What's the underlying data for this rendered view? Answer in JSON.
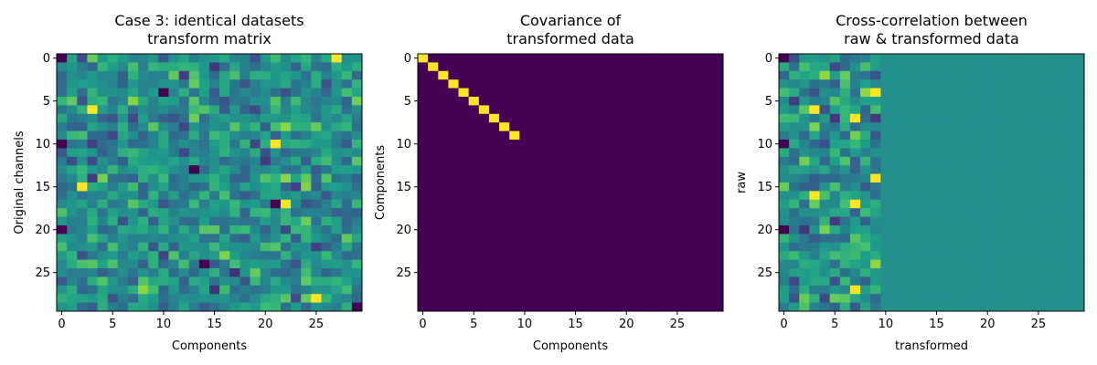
{
  "chart_data": [
    {
      "type": "heatmap",
      "title_lines": [
        "Case 3: identical datasets",
        "transform matrix"
      ],
      "xlabel": "Components",
      "ylabel": "Original channels",
      "shape": [
        30,
        30
      ],
      "xticks": [
        0,
        5,
        10,
        15,
        20,
        25
      ],
      "yticks": [
        0,
        5,
        10,
        15,
        20,
        25
      ],
      "colormap": "viridis",
      "pattern": "random",
      "value_range": [
        -1,
        1
      ],
      "seed": 7,
      "bright_cells": [
        [
          0,
          27
        ],
        [
          10,
          21
        ],
        [
          17,
          22
        ],
        [
          28,
          25
        ],
        [
          6,
          3
        ],
        [
          15,
          2
        ]
      ],
      "dark_cells": [
        [
          0,
          0
        ],
        [
          4,
          10
        ],
        [
          10,
          0
        ],
        [
          13,
          13
        ],
        [
          17,
          21
        ],
        [
          20,
          0
        ],
        [
          29,
          29
        ],
        [
          24,
          14
        ]
      ]
    },
    {
      "type": "heatmap",
      "title_lines": [
        "Covariance of",
        "transformed data"
      ],
      "xlabel": "Components",
      "ylabel": "Components",
      "shape": [
        30,
        30
      ],
      "xticks": [
        0,
        5,
        10,
        15,
        20,
        25
      ],
      "yticks": [
        0,
        5,
        10,
        15,
        20,
        25
      ],
      "colormap": "viridis",
      "pattern": "identity",
      "diagonal_count": 10,
      "diagonal_value": 1,
      "off_value": 0,
      "value_range": [
        0,
        1
      ]
    },
    {
      "type": "heatmap",
      "title_lines": [
        "Cross-correlation between",
        "raw & transformed data"
      ],
      "xlabel": "transformed",
      "ylabel": "raw",
      "shape": [
        30,
        30
      ],
      "xticks": [
        0,
        5,
        10,
        15,
        20,
        25
      ],
      "yticks": [
        0,
        5,
        10,
        15,
        20,
        25
      ],
      "colormap": "viridis",
      "pattern": "random-left-constant-right",
      "random_columns": 10,
      "constant_value": 0,
      "value_range": [
        -1,
        1
      ],
      "seed": 13,
      "bright_cells": [
        [
          6,
          3
        ],
        [
          16,
          3
        ],
        [
          17,
          7
        ],
        [
          7,
          7
        ],
        [
          27,
          7
        ],
        [
          4,
          9
        ],
        [
          14,
          9
        ]
      ],
      "dark_cells": [
        [
          0,
          0
        ],
        [
          10,
          0
        ],
        [
          20,
          0
        ]
      ]
    }
  ]
}
